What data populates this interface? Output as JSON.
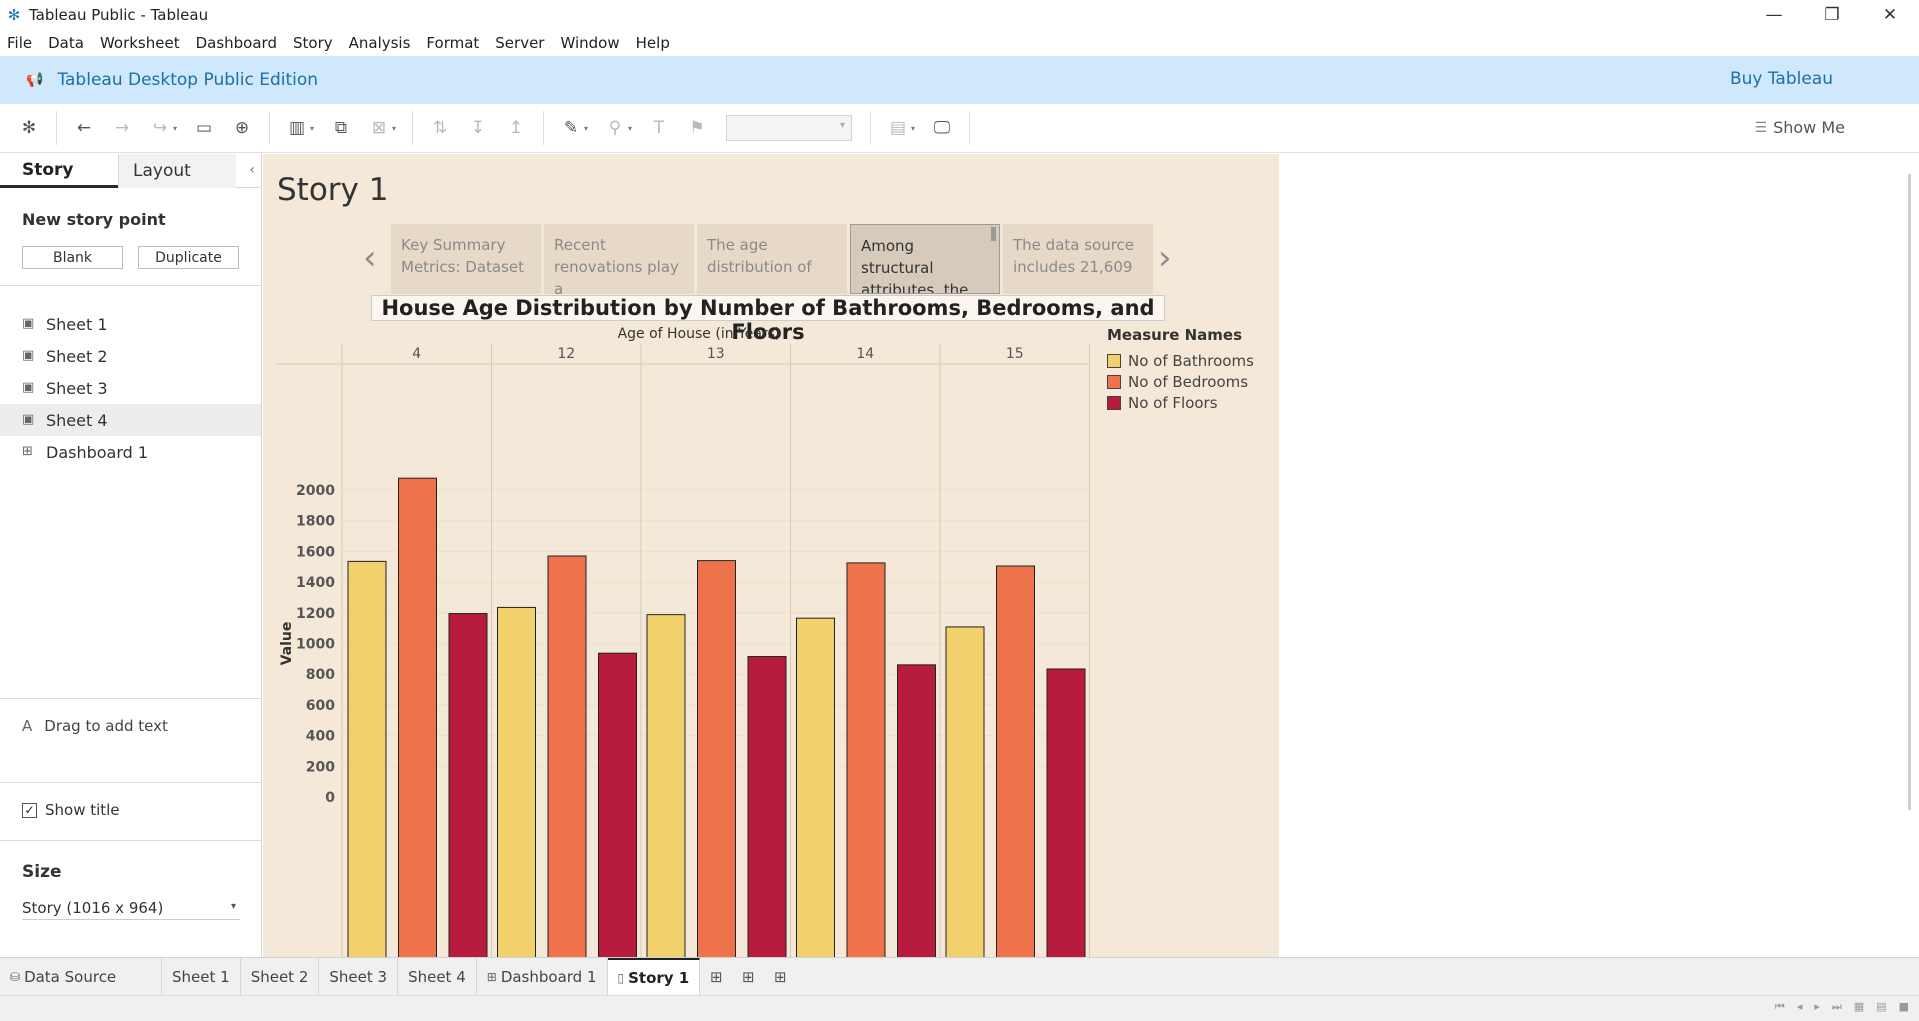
{
  "window": {
    "title": "Tableau Public - Tableau",
    "minimize": "—",
    "restore": "❐",
    "close": "✕"
  },
  "menu": [
    "File",
    "Data",
    "Worksheet",
    "Dashboard",
    "Story",
    "Analysis",
    "Format",
    "Server",
    "Window",
    "Help"
  ],
  "banner": {
    "edition": "Tableau Desktop Public Edition",
    "buy": "Buy Tableau"
  },
  "toolbar": {
    "show_me": "Show Me"
  },
  "left_pane": {
    "tabs": [
      "Story",
      "Layout"
    ],
    "new_story_point": "New story point",
    "blank": "Blank",
    "duplicate": "Duplicate",
    "sheets": [
      "Sheet 1",
      "Sheet 2",
      "Sheet 3",
      "Sheet 4",
      "Dashboard 1"
    ],
    "drag_text": "Drag to add text",
    "show_title": "Show title",
    "size_label": "Size",
    "size_value": "Story (1016 x 964)"
  },
  "story": {
    "title": "Story 1",
    "points": [
      "Key Summary Metrics: Dataset",
      "Recent renovations play a",
      "The age distribution of",
      "Among structural attributes, the",
      "The data source includes 21,609"
    ],
    "active_index": 3
  },
  "chart_data": {
    "type": "bar",
    "title": "House Age Distribution by Number of Bathrooms, Bedrooms, and Floors",
    "xlabel": "Age of House (in Years)",
    "ylabel": "Value",
    "categories": [
      "4",
      "12",
      "13",
      "14",
      "15"
    ],
    "series": [
      {
        "name": "No of Bathrooms",
        "color": "#f2d06b",
        "values": [
          1535,
          1235,
          1188,
          1165,
          1108
        ]
      },
      {
        "name": "No of Bedrooms",
        "color": "#ee734a",
        "values": [
          2077,
          1570,
          1540,
          1525,
          1505
        ]
      },
      {
        "name": "No of Floors",
        "color": "#b71c3f",
        "values": [
          1195,
          937,
          915,
          861,
          834
        ]
      }
    ],
    "yticks": [
      0,
      200,
      400,
      600,
      800,
      1000,
      1200,
      1400,
      1600,
      1800,
      2000
    ],
    "ylim": [
      0,
      2200
    ],
    "legend_title": "Measure Names",
    "legend_position": "right",
    "grid": true
  },
  "bottom_tabs": {
    "data_source": "Data Source",
    "sheets": [
      "Sheet 1",
      "Sheet 2",
      "Sheet 3",
      "Sheet 4",
      "Dashboard 1",
      "Story 1"
    ],
    "active": "Story 1"
  }
}
